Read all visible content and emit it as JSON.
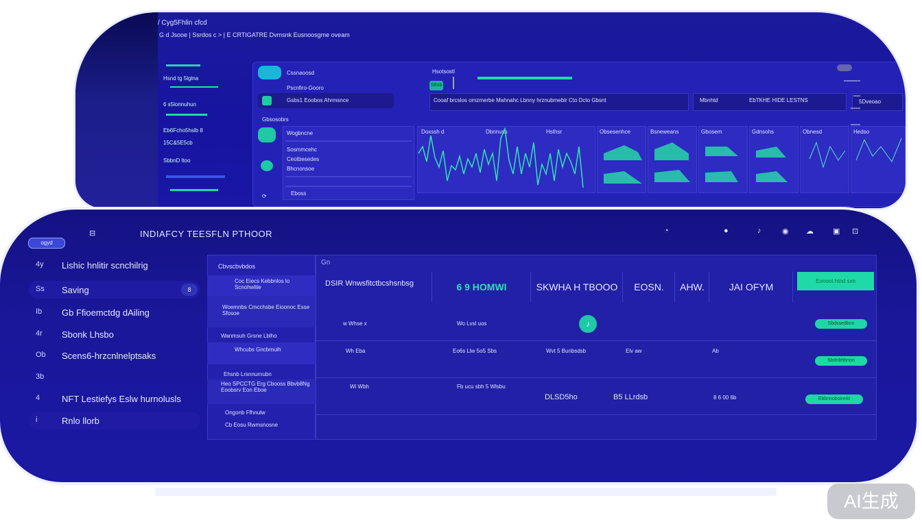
{
  "top_window": {
    "breadcrumb_line1": "/ Cyg5Fhlin cfcd",
    "breadcrumb_line2": "G d Jsooe  |  Ssrdos c >  |  E CRTIGATRE Dvmsnk  Eusnoosgme oveam",
    "sidebar_items": [
      "Hsnd  tg 5lglna",
      "6 s5lonnuhun",
      "Eb6Fcho5hslb 8",
      "15C&5E5cb",
      "SbbnD ltoo"
    ],
    "list_items": [
      "Cssnaoosd",
      "Pscnfiro-Gooro",
      "Gsbs1 Eoobos Ahrmsnce",
      "Gbsosobrs"
    ],
    "tab_label": "Hsotsostl",
    "tab_chip": "SBsb",
    "search_text": "Cooaf brcslos omzmerbe  Mahnahc Lbnny hrznubmebir  Cto  Dcto Gbsnt",
    "filter_label": "Mbnhtd",
    "filter_value": "EbTKHE HIDE LESTNS",
    "filter_right": "5Dveoao",
    "detail_rows": [
      "Wogbncne",
      "Sosmmcehc",
      "Ceotbesedes",
      "Bhcnonsoe",
      "Eboss"
    ],
    "chart_titles": [
      "Doxssh d",
      "Dbnnuss",
      "Hsthsr",
      "Obsesenhce",
      "Bsneweans",
      "Gbosem",
      "Gdnsohs",
      "Obnesd",
      "Hedso"
    ]
  },
  "bottom_window": {
    "brand_badge": "ogyd",
    "title": "INDIAFCY TEESFLN PTHOOR",
    "nav_items": [
      {
        "icon": "4y",
        "label": "Lishic hnlitir scnchilrig"
      },
      {
        "icon": "Ss",
        "label": "Saving"
      },
      {
        "icon": "Ib",
        "label": "Gb Ffioemctdg dAiling"
      },
      {
        "icon": "4r",
        "label": "Sbonk Lhsbo"
      },
      {
        "icon": "Ob",
        "label": "Scens6-hrzcnlnelptsaks"
      },
      {
        "icon": "3b",
        "label": ""
      },
      {
        "icon": "4",
        "label": "NFT Lestiefys Eslw hurnolusls"
      },
      {
        "icon": "i",
        "label": "Rnlo llorb"
      }
    ],
    "saving_badge": "8",
    "sub_panel_title": "Cbvscbvbdos",
    "sub_items": [
      "Coc Eiecs Kebbnlos  lo Scnohwltie",
      "Woemnbs Cmcchsbe Eioonoc Esse Sfosoe",
      "Wanmsuh Grsne Lblho",
      "Whcubs Gncbmuih",
      "Ehsnb Lrsnnurnubn",
      "Heo SPCCTG Erg Cbooss Bbvb8Ng Eoobsrv Eon Eboe",
      "Ongonb Ffhnulw",
      "Cb Eosu Rwmsnosne"
    ],
    "grid_caption": "Gn",
    "headers": [
      "DSIR Wnwsfitctbcshsnbsg",
      "6 9 HOMWI",
      "SKWHA H TBOOO",
      "EOSN.",
      "AHW.",
      "JAI OFYM"
    ],
    "header_button": "Eonoot htnd sxn",
    "rows": [
      {
        "c1": "w  Whse x",
        "c2": "Wo  Lvsl uos",
        "c3": "",
        "c4": "",
        "c5": "",
        "btn": "Sbdssedbnn"
      },
      {
        "c1": "Wh  Eba",
        "c2": "Eo6s Llw  5o5 Sbs",
        "c3": "Wvt  5 Bunbsdsb",
        "c4": "Elv  aw",
        "c5": "Ab",
        "btn": "Sbdnbhbnon"
      },
      {
        "c1": "Wi  Wbh",
        "c2": "Fb ucu sbh  5 Wlsbu",
        "c3": "DLSD5ho",
        "c4": "B5 LLrdsb",
        "c5": "8 6 00 6b",
        "btn": "Ebbnnobsinnlo"
      }
    ],
    "watermark": "AI生成"
  }
}
